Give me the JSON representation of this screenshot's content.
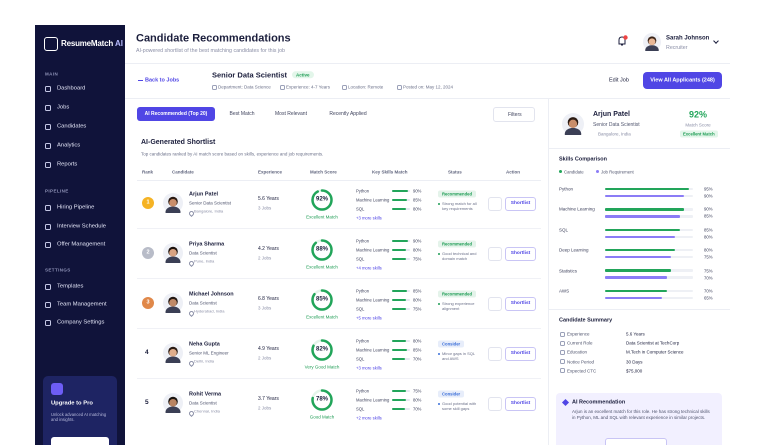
{
  "sidebar": {
    "brand": "ResumeMatch",
    "brand_suffix": "AI",
    "sections": [
      {
        "title": "MAIN",
        "items": [
          "Dashboard",
          "Jobs",
          "Candidates",
          "Analytics",
          "Reports"
        ]
      },
      {
        "title": "PIPELINE",
        "items": [
          "Hiring Pipeline",
          "Interview Schedule",
          "Offer Management"
        ]
      },
      {
        "title": "SETTINGS",
        "items": [
          "Templates",
          "Team Management",
          "Company Settings"
        ]
      }
    ],
    "upgrade": {
      "title": "Upgrade to Pro",
      "text": "Unlock advanced AI matching and insights."
    }
  },
  "header": {
    "title": "Candidate Recommendations",
    "subtitle": "AI-powered shortlist of the best matching candidates for this job",
    "user_name": "Sarah Johnson",
    "user_role": "Recruiter"
  },
  "job": {
    "back": "Back to Jobs",
    "title": "Senior Data Scientist",
    "status": "Active",
    "meta": [
      "Department: Data Science",
      "Experience: 4-7 Years",
      "Location: Remote",
      "Posted on: May 12, 2024"
    ],
    "edit": "Edit Job",
    "view_all": "View All Applicants (248)"
  },
  "tabs": [
    "AI Recommended (Top 20)",
    "Best Match",
    "Most Relevant",
    "Recently Applied"
  ],
  "filters": "Filters",
  "shortlist": {
    "title": "AI-Generated Shortlist",
    "description": "Top candidates ranked by AI match score based on skills, experience and job requirements.",
    "columns": [
      "Rank",
      "Candidate",
      "Experience",
      "Match Score",
      "Key Skills Match",
      "Status",
      "Action"
    ],
    "rows": [
      {
        "rank": 1,
        "name": "Arjun Patel",
        "role": "Senior Data Scientist",
        "location": "Bangalore, India",
        "experience": "5.6 Years",
        "jobs": "3 Jobs",
        "score": 92,
        "score_label": "92%",
        "match": "Excellent Match",
        "skills": [
          {
            "name": "Python",
            "value": 90,
            "label": "90%"
          },
          {
            "name": "Machine Learning",
            "value": 85,
            "label": "85%"
          },
          {
            "name": "SQL",
            "value": 80,
            "label": "80%"
          }
        ],
        "more": "+3 more skills",
        "status": "Recommended",
        "status_color": "#1f9d55",
        "note": "Strong match for all key requirements",
        "action": "Shortlist"
      },
      {
        "rank": 2,
        "name": "Priya Sharma",
        "role": "Data Scientist",
        "location": "Pune, India",
        "experience": "4.2 Years",
        "jobs": "2 Jobs",
        "score": 88,
        "score_label": "88%",
        "match": "Excellent Match",
        "skills": [
          {
            "name": "Python",
            "value": 90,
            "label": "90%"
          },
          {
            "name": "Machine Learning",
            "value": 80,
            "label": "80%"
          },
          {
            "name": "SQL",
            "value": 75,
            "label": "75%"
          }
        ],
        "more": "+4 more skills",
        "status": "Recommended",
        "status_color": "#1f9d55",
        "note": "Good technical and domain match",
        "action": "Shortlist"
      },
      {
        "rank": 3,
        "name": "Michael Johnson",
        "role": "Data Scientist",
        "location": "Hyderabad, India",
        "experience": "6.8 Years",
        "jobs": "3 Jobs",
        "score": 85,
        "score_label": "85%",
        "match": "Excellent Match",
        "skills": [
          {
            "name": "Python",
            "value": 85,
            "label": "85%"
          },
          {
            "name": "Machine Learning",
            "value": 80,
            "label": "80%"
          },
          {
            "name": "SQL",
            "value": 75,
            "label": "75%"
          }
        ],
        "more": "+5 more skills",
        "status": "Recommended",
        "status_color": "#1f9d55",
        "note": "Strong experience alignment",
        "action": "Shortlist"
      },
      {
        "rank": 4,
        "name": "Neha Gupta",
        "role": "Senior ML Engineer",
        "location": "Delhi, India",
        "experience": "4.9 Years",
        "jobs": "2 Jobs",
        "score": 82,
        "score_label": "82%",
        "match": "Very Good Match",
        "skills": [
          {
            "name": "Python",
            "value": 80,
            "label": "80%"
          },
          {
            "name": "Machine Learning",
            "value": 85,
            "label": "85%"
          },
          {
            "name": "SQL",
            "value": 70,
            "label": "70%"
          }
        ],
        "more": "+3 more skills",
        "status": "Consider",
        "status_color": "#3b6fd9",
        "note": "Minor gaps in SQL and AWS",
        "action": "Shortlist"
      },
      {
        "rank": 5,
        "name": "Rohit Verma",
        "role": "Data Scientist",
        "location": "Chennai, India",
        "experience": "3.7 Years",
        "jobs": "2 Jobs",
        "score": 78,
        "score_label": "78%",
        "match": "Good Match",
        "skills": [
          {
            "name": "Python",
            "value": 75,
            "label": "75%"
          },
          {
            "name": "Machine Learning",
            "value": 80,
            "label": "80%"
          },
          {
            "name": "SQL",
            "value": 70,
            "label": "70%"
          }
        ],
        "more": "+2 more skills",
        "status": "Consider",
        "status_color": "#3b6fd9",
        "note": "Good potential with some skill gaps",
        "action": "Shortlist"
      }
    ]
  },
  "profile": {
    "name": "Arjun Patel",
    "role": "Senior Data Scientist",
    "location": "Bangalore, India",
    "score_label": "92%",
    "score_caption": "Match Score",
    "match": "Excellent Match",
    "skills_title": "Skills Comparison",
    "legend": [
      "Candidate",
      "Job Requirement"
    ],
    "skills": [
      {
        "name": "Python",
        "candidate": 95,
        "candidate_label": "95%",
        "required": 90,
        "required_label": "90%"
      },
      {
        "name": "Machine Learning",
        "candidate": 90,
        "candidate_label": "90%",
        "required": 85,
        "required_label": "85%"
      },
      {
        "name": "SQL",
        "candidate": 85,
        "candidate_label": "85%",
        "required": 80,
        "required_label": "80%"
      },
      {
        "name": "Deep Learning",
        "candidate": 80,
        "candidate_label": "80%",
        "required": 75,
        "required_label": "75%"
      },
      {
        "name": "Statistics",
        "candidate": 75,
        "candidate_label": "75%",
        "required": 70,
        "required_label": "70%"
      },
      {
        "name": "AWS",
        "candidate": 70,
        "candidate_label": "70%",
        "required": 65,
        "required_label": "65%"
      }
    ],
    "summary_title": "Candidate Summary",
    "summary": [
      {
        "label": "Experience",
        "value": "5.6 Years"
      },
      {
        "label": "Current Role",
        "value": "Data Scientist at TechCorp"
      },
      {
        "label": "Education",
        "value": "M.Tech in Computer Science"
      },
      {
        "label": "Notice Period",
        "value": "30 Days"
      },
      {
        "label": "Expected CTC",
        "value": "$75,000"
      }
    ],
    "recommendation_title": "AI Recommendation",
    "recommendation": "Arjun is an excellent match for this role. He has strong technical skills in Python, ML and SQL with relevant experience in similar projects."
  }
}
